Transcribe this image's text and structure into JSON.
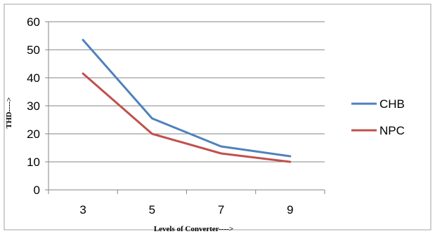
{
  "chart_data": {
    "type": "line",
    "categories": [
      "3",
      "5",
      "7",
      "9"
    ],
    "series": [
      {
        "name": "CHB",
        "color": "#4F81BD",
        "values": [
          53.5,
          25.5,
          15.5,
          12
        ]
      },
      {
        "name": "NPC",
        "color": "#C0504D",
        "values": [
          41.5,
          20,
          13,
          10
        ]
      }
    ],
    "title": "",
    "xlabel": "Levels of Converter---->",
    "ylabel": "THD---->",
    "ylim": [
      0,
      60
    ],
    "yticks": [
      "0",
      "10",
      "20",
      "30",
      "40",
      "50",
      "60"
    ],
    "grid": true,
    "legend_position": "right"
  }
}
